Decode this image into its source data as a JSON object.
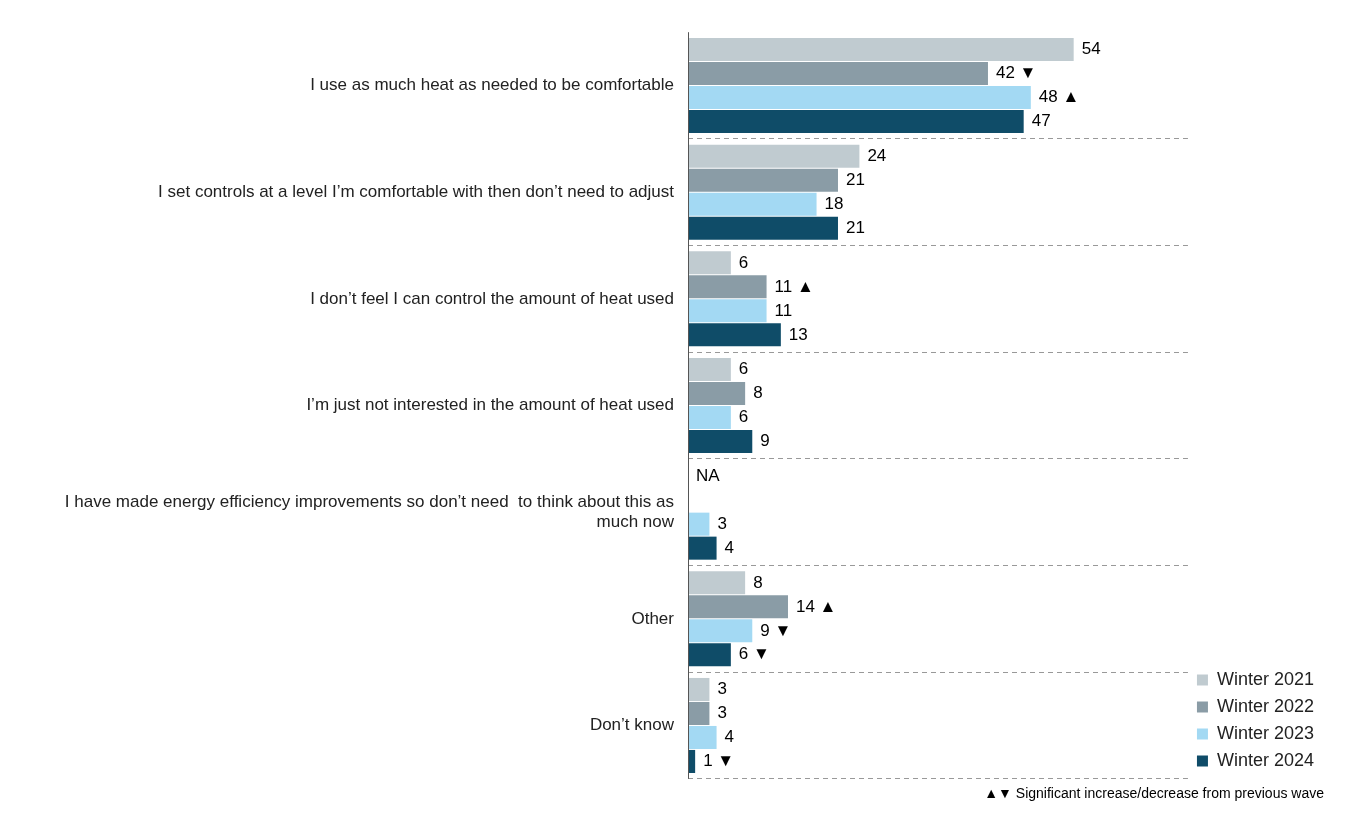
{
  "chart_data": {
    "type": "bar",
    "orientation": "horizontal",
    "categories": [
      "I use as much heat as needed to be comfortable",
      "I set controls at a level I’m comfortable with then don’t need to adjust",
      "I don’t feel I can control the amount of heat used",
      "I’m just not interested in the amount of heat used",
      "I have made energy efficiency improvements so don’t need  to think about this as much now",
      "Other",
      "Don’t know"
    ],
    "series": [
      {
        "name": "Winter 2021",
        "color": "#c0cbd0",
        "values": [
          54,
          24,
          6,
          6,
          null,
          8,
          3
        ],
        "value_labels": [
          "54",
          "24",
          "6",
          "6",
          "NA",
          "8",
          "3"
        ]
      },
      {
        "name": "Winter 2022",
        "color": "#8a9ca6",
        "values": [
          42,
          21,
          11,
          8,
          null,
          14,
          3
        ],
        "value_labels": [
          "42 ▼",
          "21",
          "11 ▲",
          "8",
          null,
          "14 ▲",
          "3"
        ]
      },
      {
        "name": "Winter 2023",
        "color": "#a3d9f3",
        "values": [
          48,
          18,
          11,
          6,
          3,
          9,
          4
        ],
        "value_labels": [
          "48 ▲",
          "18",
          "11",
          "6",
          "3",
          "9 ▼",
          "4"
        ]
      },
      {
        "name": "Winter 2024",
        "color": "#0f4c68",
        "values": [
          47,
          21,
          13,
          9,
          4,
          6,
          1
        ],
        "value_labels": [
          "47",
          "21",
          "13",
          "9",
          "4",
          "6 ▼",
          "1 ▼"
        ]
      }
    ],
    "xlim": [
      0,
      70
    ],
    "tick_labels": "y",
    "grid": "y",
    "legend": "bottom right",
    "annotations": [
      "▲▼ Significant increase/decrease from previous wave"
    ]
  }
}
